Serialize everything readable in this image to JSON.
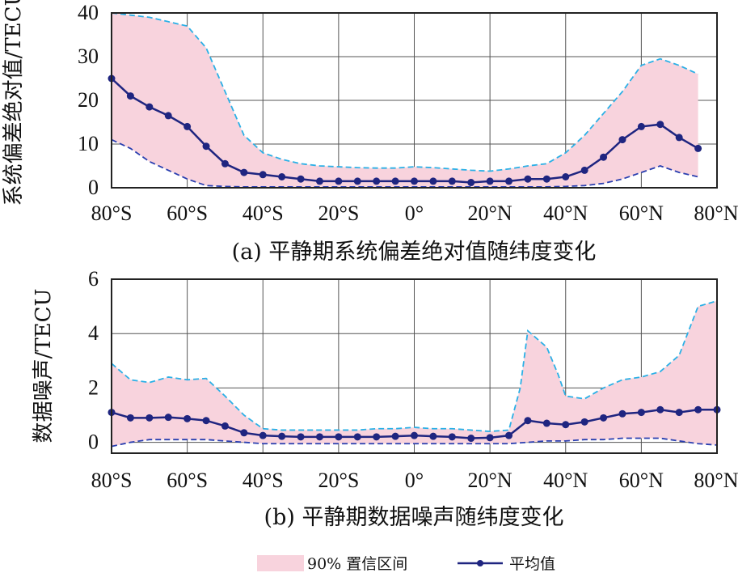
{
  "legend": {
    "band_label": "90% 置信区间",
    "mean_label": "平均值"
  },
  "colors": {
    "band_fill": "#f8d3dd",
    "upper_line": "#2bb0e6",
    "lower_line": "#2a3fb0",
    "mean_line": "#1f2580",
    "grid": "#555555"
  },
  "chart_data": [
    {
      "id": "a",
      "type": "line",
      "caption": "(a) 平静期系统偏差绝对值随纬度变化",
      "ylabel": "系统偏差绝对值/TECU",
      "xlim": [
        -80,
        80
      ],
      "ylim": [
        0,
        40
      ],
      "xticks": [
        -80,
        -60,
        -40,
        -20,
        0,
        20,
        40,
        60,
        80
      ],
      "xtick_labels": [
        "80°S",
        "60°S",
        "40°S",
        "20°S",
        "0°",
        "20°N",
        "40°N",
        "60°N",
        "80°N"
      ],
      "yticks": [
        0,
        10,
        20,
        30,
        40
      ],
      "ytick_labels": [
        "0",
        "10",
        "20",
        "30",
        "40"
      ],
      "grid": true,
      "series": [
        {
          "role": "mean",
          "x": [
            -80,
            -75,
            -70,
            -65,
            -60,
            -55,
            -50,
            -45,
            -40,
            -35,
            -30,
            -25,
            -20,
            -15,
            -10,
            -5,
            0,
            5,
            10,
            15,
            20,
            25,
            30,
            35,
            40,
            45,
            50,
            55,
            60,
            65,
            70,
            75
          ],
          "y": [
            25,
            21,
            18.5,
            16.5,
            14,
            9.5,
            5.5,
            3.5,
            3,
            2.5,
            2,
            1.5,
            1.5,
            1.5,
            1.5,
            1.5,
            1.5,
            1.5,
            1.5,
            1.2,
            1.5,
            1.5,
            2,
            2,
            2.5,
            4,
            7,
            11,
            14,
            14.5,
            11.5,
            9
          ]
        },
        {
          "role": "upper",
          "x": [
            -80,
            -75,
            -70,
            -65,
            -60,
            -55,
            -50,
            -45,
            -40,
            -35,
            -30,
            -25,
            -20,
            -15,
            -10,
            -5,
            0,
            5,
            10,
            15,
            20,
            25,
            30,
            35,
            40,
            45,
            50,
            55,
            60,
            65,
            70,
            75
          ],
          "y": [
            40,
            39.5,
            39,
            38,
            37,
            32,
            22,
            12,
            8,
            6.5,
            5.5,
            5,
            4.8,
            4.6,
            4.5,
            4.5,
            4.8,
            4.6,
            4.3,
            4,
            3.8,
            4.3,
            5,
            5.5,
            8,
            12,
            17,
            22,
            28,
            29.5,
            28,
            26
          ]
        },
        {
          "role": "lower",
          "x": [
            -80,
            -75,
            -70,
            -65,
            -60,
            -55,
            -50,
            -45,
            -40,
            -35,
            -30,
            -25,
            -20,
            -15,
            -10,
            -5,
            0,
            5,
            10,
            15,
            20,
            25,
            30,
            35,
            40,
            45,
            50,
            55,
            60,
            65,
            70,
            75
          ],
          "y": [
            11,
            9,
            6,
            4,
            2,
            0.5,
            0.3,
            0.2,
            0.2,
            0.2,
            0.2,
            0.2,
            0.2,
            0.2,
            0.2,
            0.2,
            0.2,
            0.2,
            0.2,
            0.2,
            0.2,
            0.2,
            0.2,
            0.2,
            0.3,
            0.5,
            1,
            2,
            3.5,
            5,
            3.5,
            2.5
          ]
        }
      ]
    },
    {
      "id": "b",
      "type": "line",
      "caption": "(b) 平静期数据噪声随纬度变化",
      "ylabel": "数据噪声/TECU",
      "xlim": [
        -80,
        80
      ],
      "ylim": [
        -0.4,
        6
      ],
      "xticks": [
        -80,
        -60,
        -40,
        -20,
        0,
        20,
        40,
        60,
        80
      ],
      "xtick_labels": [
        "80°S",
        "60°S",
        "40°S",
        "20°S",
        "0°",
        "20°N",
        "40°N",
        "60°N",
        "80°N"
      ],
      "yticks": [
        0,
        2,
        4,
        6
      ],
      "ytick_labels": [
        "0",
        "2",
        "4",
        "6"
      ],
      "grid": true,
      "series": [
        {
          "role": "mean",
          "x": [
            -80,
            -75,
            -70,
            -65,
            -60,
            -55,
            -50,
            -45,
            -40,
            -35,
            -30,
            -25,
            -20,
            -15,
            -10,
            -5,
            0,
            5,
            10,
            15,
            20,
            25,
            30,
            35,
            40,
            45,
            50,
            55,
            60,
            65,
            70,
            75,
            80
          ],
          "y": [
            1.1,
            0.9,
            0.9,
            0.92,
            0.87,
            0.8,
            0.6,
            0.35,
            0.25,
            0.22,
            0.2,
            0.2,
            0.2,
            0.2,
            0.2,
            0.22,
            0.25,
            0.22,
            0.2,
            0.15,
            0.17,
            0.25,
            0.8,
            0.7,
            0.65,
            0.75,
            0.9,
            1.05,
            1.1,
            1.2,
            1.1,
            1.2,
            1.2
          ]
        },
        {
          "role": "upper",
          "x": [
            -80,
            -75,
            -70,
            -65,
            -60,
            -55,
            -50,
            -45,
            -40,
            -35,
            -30,
            -25,
            -20,
            -15,
            -10,
            -5,
            0,
            5,
            10,
            15,
            20,
            25,
            28,
            30,
            35,
            38,
            40,
            45,
            50,
            55,
            60,
            65,
            70,
            75,
            80
          ],
          "y": [
            2.9,
            2.3,
            2.2,
            2.4,
            2.3,
            2.35,
            1.7,
            1.0,
            0.5,
            0.45,
            0.45,
            0.45,
            0.45,
            0.45,
            0.5,
            0.5,
            0.55,
            0.5,
            0.5,
            0.45,
            0.4,
            0.45,
            2,
            4.1,
            3.5,
            2.5,
            1.7,
            1.6,
            2,
            2.3,
            2.4,
            2.6,
            3.2,
            5,
            5.2
          ]
        },
        {
          "role": "lower",
          "x": [
            -80,
            -75,
            -70,
            -65,
            -60,
            -55,
            -50,
            -45,
            -40,
            -35,
            -30,
            -25,
            -20,
            -15,
            -10,
            -5,
            0,
            5,
            10,
            15,
            20,
            25,
            30,
            35,
            40,
            45,
            50,
            55,
            60,
            65,
            70,
            75,
            80
          ],
          "y": [
            -0.15,
            0,
            0.1,
            0.1,
            0.1,
            0.1,
            0.05,
            0,
            -0.05,
            -0.05,
            -0.05,
            -0.05,
            -0.05,
            -0.05,
            -0.05,
            -0.05,
            -0.05,
            -0.05,
            -0.05,
            -0.05,
            -0.05,
            -0.05,
            0,
            0.05,
            0.05,
            0.1,
            0.1,
            0.15,
            0.15,
            0.15,
            0.05,
            -0.05,
            -0.1
          ]
        }
      ]
    }
  ]
}
